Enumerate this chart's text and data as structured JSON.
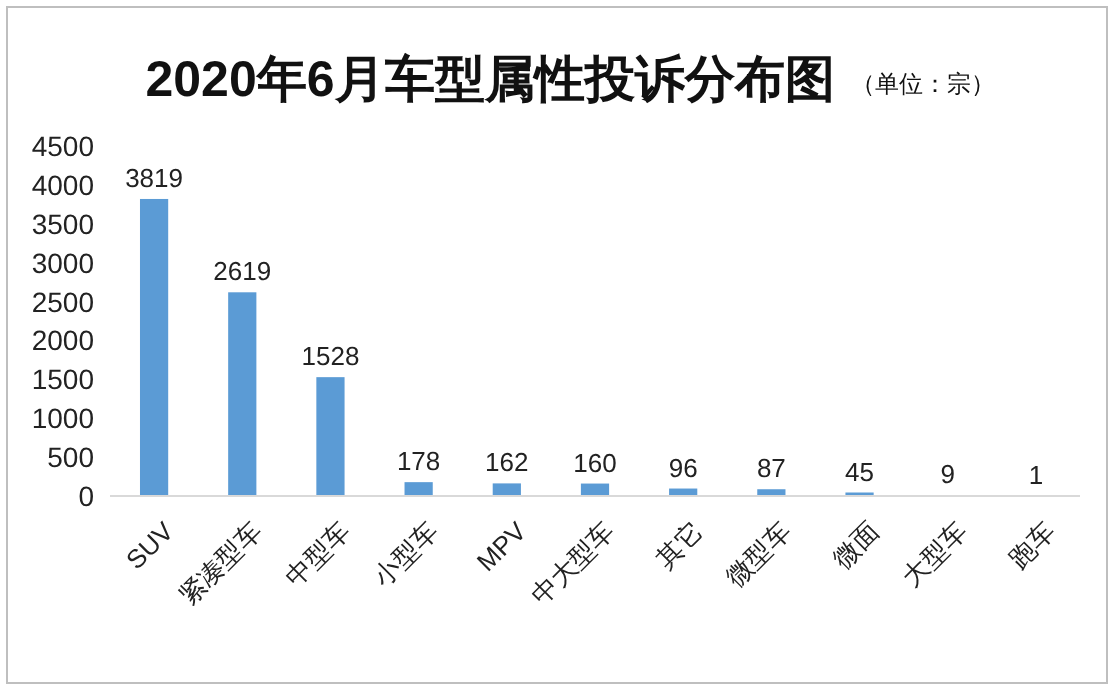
{
  "chart_data": {
    "type": "bar",
    "title": "2020年6月车型属性投诉分布图",
    "subtitle": "（单位：宗）",
    "categories": [
      "SUV",
      "紧凑型车",
      "中型车",
      "小型车",
      "MPV",
      "中大型车",
      "其它",
      "微型车",
      "微面",
      "大型车",
      "跑车"
    ],
    "values": [
      3819,
      2619,
      1528,
      178,
      162,
      160,
      96,
      87,
      45,
      9,
      1
    ],
    "color": "#5b9bd5",
    "ylim": [
      0,
      4500
    ],
    "yticks": [
      0,
      500,
      1000,
      1500,
      2000,
      2500,
      3000,
      3500,
      4000,
      4500
    ],
    "data_labels": true
  }
}
